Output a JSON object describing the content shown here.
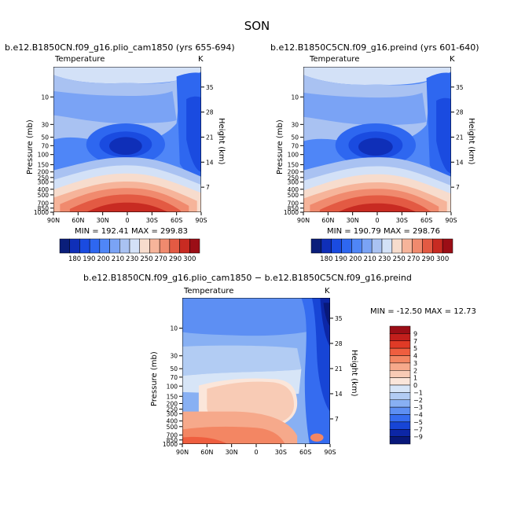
{
  "figure": {
    "season": "SON",
    "panels": [
      {
        "title": "b.e12.B1850CN.f09_g16.plio_cam1850 (yrs 655-694)",
        "subtitle": "Temperature",
        "units": "K",
        "ylabel": "Pressure (mb)",
        "y2label": "Height (km)",
        "stats": "MIN = 192.41   MAX = 299.83"
      },
      {
        "title": "b.e12.B1850C5CN.f09_g16.preind (yrs 601-640)",
        "subtitle": "Temperature",
        "units": "K",
        "ylabel": "Pressure (mb)",
        "y2label": "Height (km)",
        "stats": "MIN = 190.79   MAX = 298.76"
      },
      {
        "title": "b.e12.B1850CN.f09_g16.plio_cam1850 − b.e12.B1850C5CN.f09_g16.preind",
        "subtitle": "Temperature",
        "units": "K",
        "ylabel": "Pressure (mb)",
        "y2label": "Height (km)",
        "stats": "MIN = -12.50   MAX =  12.73"
      }
    ]
  },
  "chart_data": [
    {
      "type": "heatmap",
      "title": "b.e12.B1850CN.f09_g16.plio_cam1850 (yrs 655-694)",
      "field": "Temperature",
      "units": "K",
      "xticks": [
        "90N",
        "60N",
        "30N",
        "0",
        "30S",
        "60S",
        "90S"
      ],
      "yticks_pressure": [
        10,
        30,
        50,
        70,
        100,
        150,
        200,
        250,
        300,
        400,
        500,
        700,
        850,
        1000
      ],
      "yticks_height": [
        35,
        28,
        21,
        14,
        7
      ],
      "xlabel": "",
      "ylabel": "Pressure (mb)",
      "y2label": "Height (km)",
      "min": 192.41,
      "max": 299.83,
      "levels": [
        180,
        190,
        200,
        210,
        220,
        230,
        240,
        250,
        260,
        270,
        280,
        290,
        300
      ],
      "colorbar_labels": [
        "180",
        "190",
        "200",
        "210",
        "230",
        "250",
        "270",
        "290",
        "300"
      ],
      "colors": [
        "#0a1e7a",
        "#0f2fb8",
        "#1a4be0",
        "#2e67f0",
        "#4f86f7",
        "#7aa3f5",
        "#a9c2f2",
        "#d3e1f7",
        "#f7dccd",
        "#f6b49a",
        "#f08a6e",
        "#e35a43",
        "#c82b22",
        "#9b0e16"
      ]
    },
    {
      "type": "heatmap",
      "title": "b.e12.B1850C5CN.f09_g16.preind (yrs 601-640)",
      "field": "Temperature",
      "units": "K",
      "xticks": [
        "90N",
        "60N",
        "30N",
        "0",
        "30S",
        "60S",
        "90S"
      ],
      "yticks_pressure": [
        10,
        30,
        50,
        70,
        100,
        150,
        200,
        250,
        300,
        400,
        500,
        700,
        850,
        1000
      ],
      "yticks_height": [
        35,
        28,
        21,
        14,
        7
      ],
      "xlabel": "",
      "ylabel": "Pressure (mb)",
      "y2label": "Height (km)",
      "min": 190.79,
      "max": 298.76,
      "levels": [
        180,
        190,
        200,
        210,
        220,
        230,
        240,
        250,
        260,
        270,
        280,
        290,
        300
      ],
      "colorbar_labels": [
        "180",
        "190",
        "200",
        "210",
        "230",
        "250",
        "270",
        "290",
        "300"
      ],
      "colors": [
        "#0a1e7a",
        "#0f2fb8",
        "#1a4be0",
        "#2e67f0",
        "#4f86f7",
        "#7aa3f5",
        "#a9c2f2",
        "#d3e1f7",
        "#f7dccd",
        "#f6b49a",
        "#f08a6e",
        "#e35a43",
        "#c82b22",
        "#9b0e16"
      ]
    },
    {
      "type": "heatmap",
      "title": "b.e12.B1850CN.f09_g16.plio_cam1850 − b.e12.B1850C5CN.f09_g16.preind",
      "field": "Temperature",
      "units": "K",
      "xticks": [
        "90N",
        "60N",
        "30N",
        "0",
        "30S",
        "60S",
        "90S"
      ],
      "yticks_pressure": [
        10,
        30,
        50,
        70,
        100,
        150,
        200,
        250,
        300,
        400,
        500,
        700,
        850,
        1000
      ],
      "yticks_height": [
        35,
        28,
        21,
        14,
        7
      ],
      "xlabel": "",
      "ylabel": "Pressure (mb)",
      "y2label": "Height (km)",
      "min": -12.5,
      "max": 12.73,
      "levels": [
        -9,
        -7,
        -5,
        -4,
        -3,
        -2,
        -1,
        0,
        1,
        2,
        3,
        4,
        5,
        7,
        9
      ],
      "colorbar_labels": [
        "9",
        "7",
        "5",
        "4",
        "3",
        "2",
        "1",
        "0",
        "−1",
        "−2",
        "−3",
        "−4",
        "−5",
        "−7",
        "−9"
      ],
      "colors": [
        "#9b0e16",
        "#c21f1c",
        "#e03a26",
        "#ef5e3f",
        "#f38663",
        "#f6a98b",
        "#f8cbb5",
        "#fbe6da",
        "#d7e5f7",
        "#b2ccf3",
        "#88b0f3",
        "#5d8ff3",
        "#356cf0",
        "#1745d6",
        "#0c26a6",
        "#08187a"
      ]
    }
  ]
}
